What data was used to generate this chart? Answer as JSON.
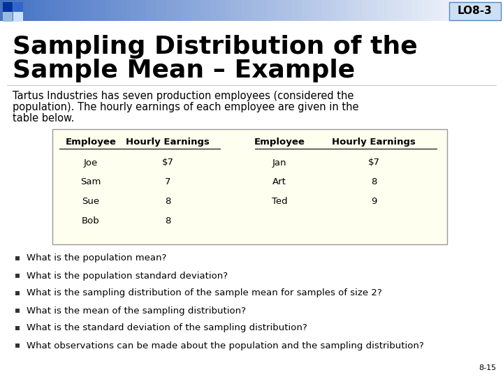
{
  "title_line1": "Sampling Distribution of the",
  "title_line2": "Sample Mean – Example",
  "lo_label": "LO8-3",
  "body_text": "Tartus Industries has seven production employees (considered the\npopulation). The hourly earnings of each employee are given in the\ntable below.",
  "table_left_headers": [
    "Employee",
    "Hourly Earnings"
  ],
  "table_right_headers": [
    "Employee",
    "Hourly Earnings"
  ],
  "table_left_rows": [
    [
      "Joe",
      "$7"
    ],
    [
      "Sam",
      "7"
    ],
    [
      "Sue",
      "8"
    ],
    [
      "Bob",
      "8"
    ]
  ],
  "table_right_rows": [
    [
      "Jan",
      "$7"
    ],
    [
      "Art",
      "8"
    ],
    [
      "Ted",
      "9"
    ]
  ],
  "bullets": [
    "What is the population mean?",
    "What is the population standard deviation?",
    "What is the sampling distribution of the sample mean for samples of size 2?",
    "What is the mean of the sampling distribution?",
    "What is the standard deviation of the sampling distribution?",
    "What observations can be made about the population and the sampling distribution?"
  ],
  "page_number": "8-15",
  "bg_color": "#ffffff",
  "header_stripe_color": "#6699cc",
  "header_fade_color": "#ddeeff",
  "sq_colors": [
    "#003399",
    "#3366cc",
    "#99bbdd",
    "#cce0ff"
  ],
  "lo_bg": "#cce0ff",
  "lo_border": "#6699cc",
  "lo_text_color": "#000000",
  "table_bg": "#fffff0",
  "table_border": "#999999",
  "table_header_bg": "#e8e8d0",
  "title_color": "#000000",
  "body_color": "#000000",
  "bullet_color": "#000000",
  "title_fontsize": 26,
  "body_fontsize": 10.5,
  "table_fontsize": 9.5,
  "bullet_fontsize": 9.5,
  "lo_fontsize": 11,
  "page_fontsize": 8
}
